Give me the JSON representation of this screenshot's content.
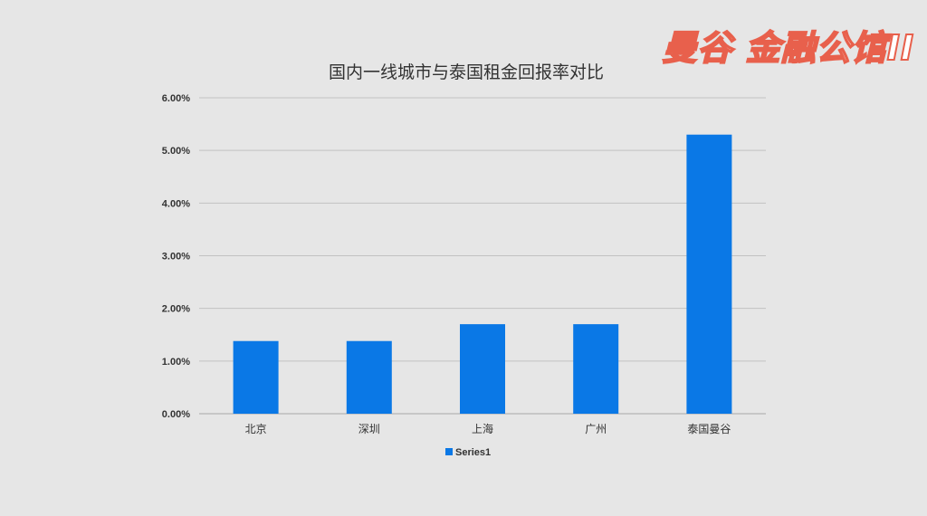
{
  "watermark": "曼谷 金融公馆II",
  "chart_data": {
    "type": "bar",
    "title": "国内一线城市与泰国租金回报率对比",
    "xlabel": "",
    "ylabel": "",
    "categories": [
      "北京",
      "深圳",
      "上海",
      "广州",
      "泰国曼谷"
    ],
    "series": [
      {
        "name": "Series1",
        "values": [
          0.0138,
          0.0138,
          0.017,
          0.017,
          0.053
        ],
        "color": "#0a78e6"
      }
    ],
    "ylim": [
      0,
      0.06
    ],
    "yticks": [
      {
        "value": 0.0,
        "label": "0.00%"
      },
      {
        "value": 0.01,
        "label": "1.00%"
      },
      {
        "value": 0.02,
        "label": "2.00%"
      },
      {
        "value": 0.03,
        "label": "3.00%"
      },
      {
        "value": 0.04,
        "label": "4.00%"
      },
      {
        "value": 0.05,
        "label": "5.00%"
      },
      {
        "value": 0.06,
        "label": "6.00%"
      }
    ],
    "grid": true,
    "legend_position": "bottom"
  }
}
